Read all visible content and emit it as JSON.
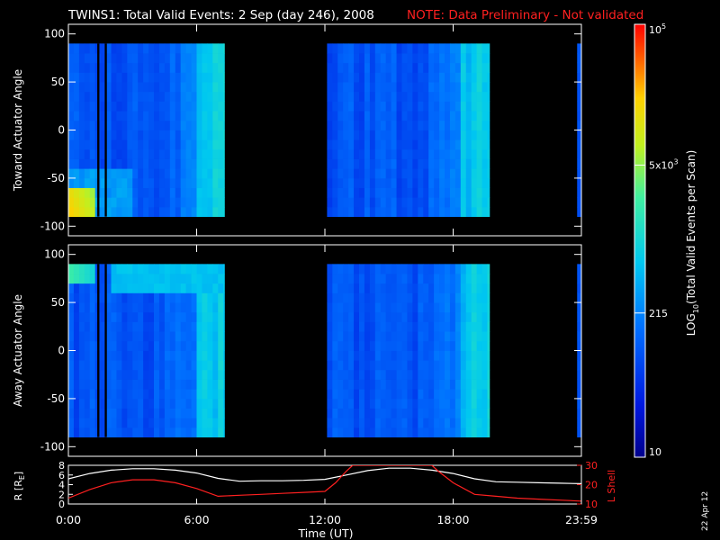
{
  "header": {
    "title": "TWINS1: Total Valid Events:  2 Sep (day 246), 2008",
    "note": "NOTE: Data Preliminary - Not validated",
    "note_color": "#ff2020"
  },
  "colorbar": {
    "label_prefix": "LOG",
    "label_sub": "10",
    "label_suffix": "(Total Valid Events per Scan)",
    "ticks": [
      {
        "text": "10",
        "value": 10
      },
      {
        "text": "215",
        "value": 215
      },
      {
        "text": "5x10",
        "sup": "3",
        "value": 5000
      },
      {
        "text": "10",
        "sup": "5",
        "value": 100000
      }
    ]
  },
  "x_axis": {
    "label": "Time (UT)",
    "ticks": [
      "0:00",
      "6:00",
      "12:00",
      "18:00",
      "23:59"
    ]
  },
  "stamp": "22 Apr 12",
  "chart_data": [
    {
      "type": "heatmap",
      "ylabel": "Toward Actuator Angle",
      "ylim": [
        -110,
        110
      ],
      "yticks": [
        "100",
        "50",
        "0",
        "-50",
        "-100"
      ],
      "xlim_hours": [
        0,
        24
      ],
      "angle_range": [
        -90,
        90
      ],
      "data_segments_hours": [
        [
          0,
          7.3
        ],
        [
          12.1,
          19.7
        ],
        [
          23.8,
          24
        ]
      ],
      "gaps_hours": [
        [
          1.35,
          1.45
        ],
        [
          1.7,
          1.8
        ]
      ],
      "color_scale": "log10",
      "zlim": [
        10,
        100000
      ],
      "hotspot": {
        "angle_range": [
          -90,
          -55
        ],
        "hours": [
          0,
          1.2
        ]
      }
    },
    {
      "type": "heatmap",
      "ylabel": "Away Actuator Angle",
      "ylim": [
        -110,
        110
      ],
      "yticks": [
        "100",
        "50",
        "0",
        "-50",
        "-100"
      ],
      "xlim_hours": [
        0,
        24
      ],
      "angle_range": [
        -90,
        90
      ],
      "data_segments_hours": [
        [
          0,
          7.3
        ],
        [
          12.1,
          19.7
        ],
        [
          23.8,
          24
        ]
      ],
      "gaps_hours": [
        [
          1.35,
          1.45
        ],
        [
          1.7,
          1.8
        ]
      ],
      "color_scale": "log10",
      "zlim": [
        10,
        100000
      ],
      "band": {
        "angle_range": [
          68,
          85
        ],
        "hours": [
          2.0,
          7.3
        ]
      }
    },
    {
      "type": "line",
      "ylabel_left": "R [R",
      "ylabel_left_sub": "E",
      "ylabel_left_suffix": "]",
      "ylabel_right": "L Shell",
      "ylim_left": [
        0,
        8
      ],
      "ylim_right": [
        10,
        30
      ],
      "yticks_left": [
        "0",
        "2",
        "4",
        "6",
        "8"
      ],
      "yticks_right": [
        "10",
        "20",
        "30"
      ],
      "series": [
        {
          "color": "#ffffff",
          "axis": "left",
          "x": [
            0,
            1,
            2,
            3,
            4,
            5,
            6,
            7,
            8,
            9,
            10,
            11,
            12,
            13,
            14,
            15,
            16,
            17,
            18,
            19,
            20,
            21,
            22,
            23,
            24
          ],
          "y": [
            5.2,
            6.3,
            7.0,
            7.3,
            7.3,
            7.0,
            6.4,
            5.3,
            4.7,
            4.8,
            4.8,
            4.9,
            5.1,
            6.0,
            6.9,
            7.4,
            7.4,
            7.0,
            6.3,
            5.2,
            4.6,
            4.5,
            4.4,
            4.3,
            4.2
          ]
        },
        {
          "color": "#ff2020",
          "axis": "right",
          "x": [
            0,
            1,
            2,
            3,
            4,
            5,
            6,
            7,
            8,
            9,
            10,
            11,
            12,
            12.5,
            13,
            13.3,
            17.0,
            17.3,
            18,
            19,
            20,
            21,
            22,
            23,
            24
          ],
          "y": [
            13,
            17.5,
            21,
            22.5,
            22.5,
            21,
            18,
            14,
            14.5,
            15,
            15.5,
            16,
            16.5,
            21,
            27,
            30,
            30,
            27,
            21,
            15,
            14,
            13,
            12.5,
            12,
            11.5
          ]
        }
      ]
    }
  ]
}
